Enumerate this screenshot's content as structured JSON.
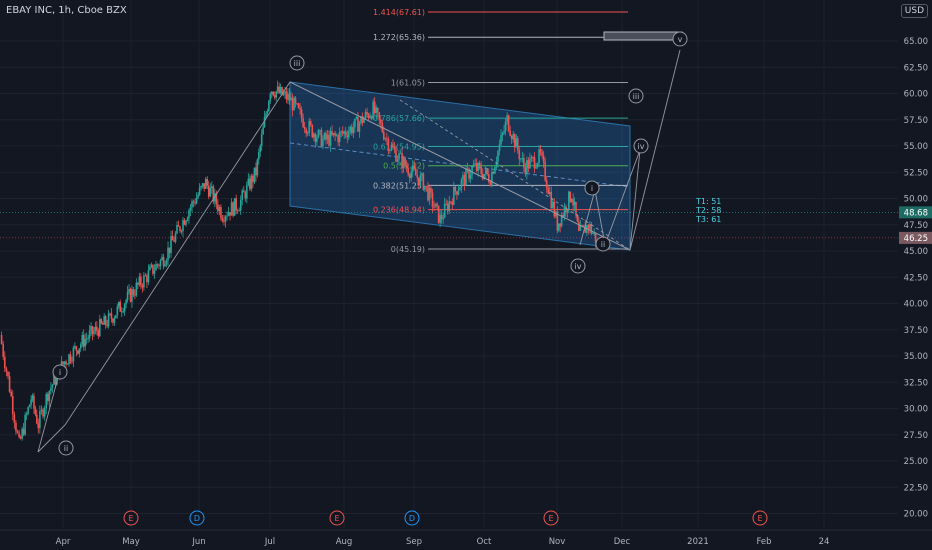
{
  "header": {
    "title": "EBAY INC, 1h, Cboe BZX",
    "currency": "USD"
  },
  "colors": {
    "bg": "#131722",
    "grid": "#1e2230",
    "up": "#26a69a",
    "down": "#ef5350",
    "channel": "#2a6fa8",
    "fill": "rgba(33,90,150,0.45)",
    "wave": "#9598a1"
  },
  "chart_data": {
    "type": "line",
    "x_axis": {
      "ticks": [
        "Apr",
        "May",
        "Jun",
        "Jul",
        "Aug",
        "Sep",
        "Oct",
        "Nov",
        "Dec",
        "2021",
        "Feb",
        "24"
      ]
    },
    "y_axis": {
      "range": [
        20,
        66
      ],
      "ticks": [
        "65.00",
        "62.50",
        "60.00",
        "57.50",
        "55.00",
        "52.50",
        "50.00",
        "47.50",
        "45.00",
        "42.50",
        "40.00",
        "37.50",
        "35.00",
        "32.50",
        "30.00",
        "27.50",
        "25.00",
        "22.50",
        "20.00"
      ]
    },
    "price_series": {
      "name": "EBAY",
      "x": [
        "Mar 16",
        "Mar 20",
        "Mar 24",
        "Mar 29",
        "Apr 1",
        "Apr 5",
        "Apr 12",
        "Apr 20",
        "May 1",
        "May 12",
        "May 24",
        "Jun 3",
        "Jun 10",
        "Jun 17",
        "Jun 24",
        "Jul 1",
        "Jul 7",
        "Jul 15",
        "Jul 22",
        "Jul 29",
        "Aug 5",
        "Aug 12",
        "Aug 19",
        "Aug 26",
        "Sep 2",
        "Sep 9",
        "Sep 16",
        "Sep 23",
        "Sep 30",
        "Oct 7",
        "Oct 14",
        "Oct 21",
        "Oct 28",
        "Nov 4",
        "Nov 10",
        "Nov 13",
        "Nov 17",
        "Nov 20"
      ],
      "y": [
        37.0,
        32.0,
        26.5,
        31.0,
        28.5,
        31.5,
        34.5,
        36.5,
        38.5,
        41.5,
        44.5,
        49.0,
        51.5,
        48.5,
        49.5,
        52.5,
        60.5,
        59.5,
        57.0,
        55.5,
        56.0,
        57.0,
        58.5,
        55.0,
        53.0,
        51.5,
        48.0,
        51.0,
        53.0,
        52.0,
        57.5,
        53.0,
        54.0,
        47.5,
        50.5,
        46.5,
        47.5,
        46.2
      ]
    },
    "fib_levels": [
      {
        "label": "1.414(67.61)",
        "value": 67.61,
        "color": "#ef5350"
      },
      {
        "label": "1.272(65.36)",
        "value": 65.36,
        "color": "#b2b5be"
      },
      {
        "label": "1(61.05)",
        "value": 61.05,
        "color": "#9598a1"
      },
      {
        "label": "0.786(57.66)",
        "value": 57.66,
        "color": "#26a69a"
      },
      {
        "label": "0.618(54.95)",
        "value": 54.95,
        "color": "#26a69a"
      },
      {
        "label": "0.5(53.12)",
        "value": 53.12,
        "color": "#4caf50"
      },
      {
        "label": "0.382(51.25)",
        "value": 51.25,
        "color": "#b2b5be"
      },
      {
        "label": "0.236(48.94)",
        "value": 48.94,
        "color": "#ef5350"
      },
      {
        "label": "0(45.19)",
        "value": 45.19,
        "color": "#9598a1"
      }
    ],
    "wave_labels": [
      "i",
      "ii",
      "iii",
      "iv",
      "i",
      "ii",
      "iii",
      "iv",
      "v"
    ],
    "targets": [
      "T1: 51",
      "T2: 58",
      "T3: 61"
    ],
    "price_tags": [
      {
        "text": "48.68",
        "value": 48.68,
        "color": "#26a69a"
      },
      {
        "text": "46.25",
        "value": 46.25,
        "color": "#ef5350"
      }
    ],
    "events": [
      "E",
      "D",
      "E",
      "D",
      "E",
      "E"
    ],
    "grid": true
  }
}
